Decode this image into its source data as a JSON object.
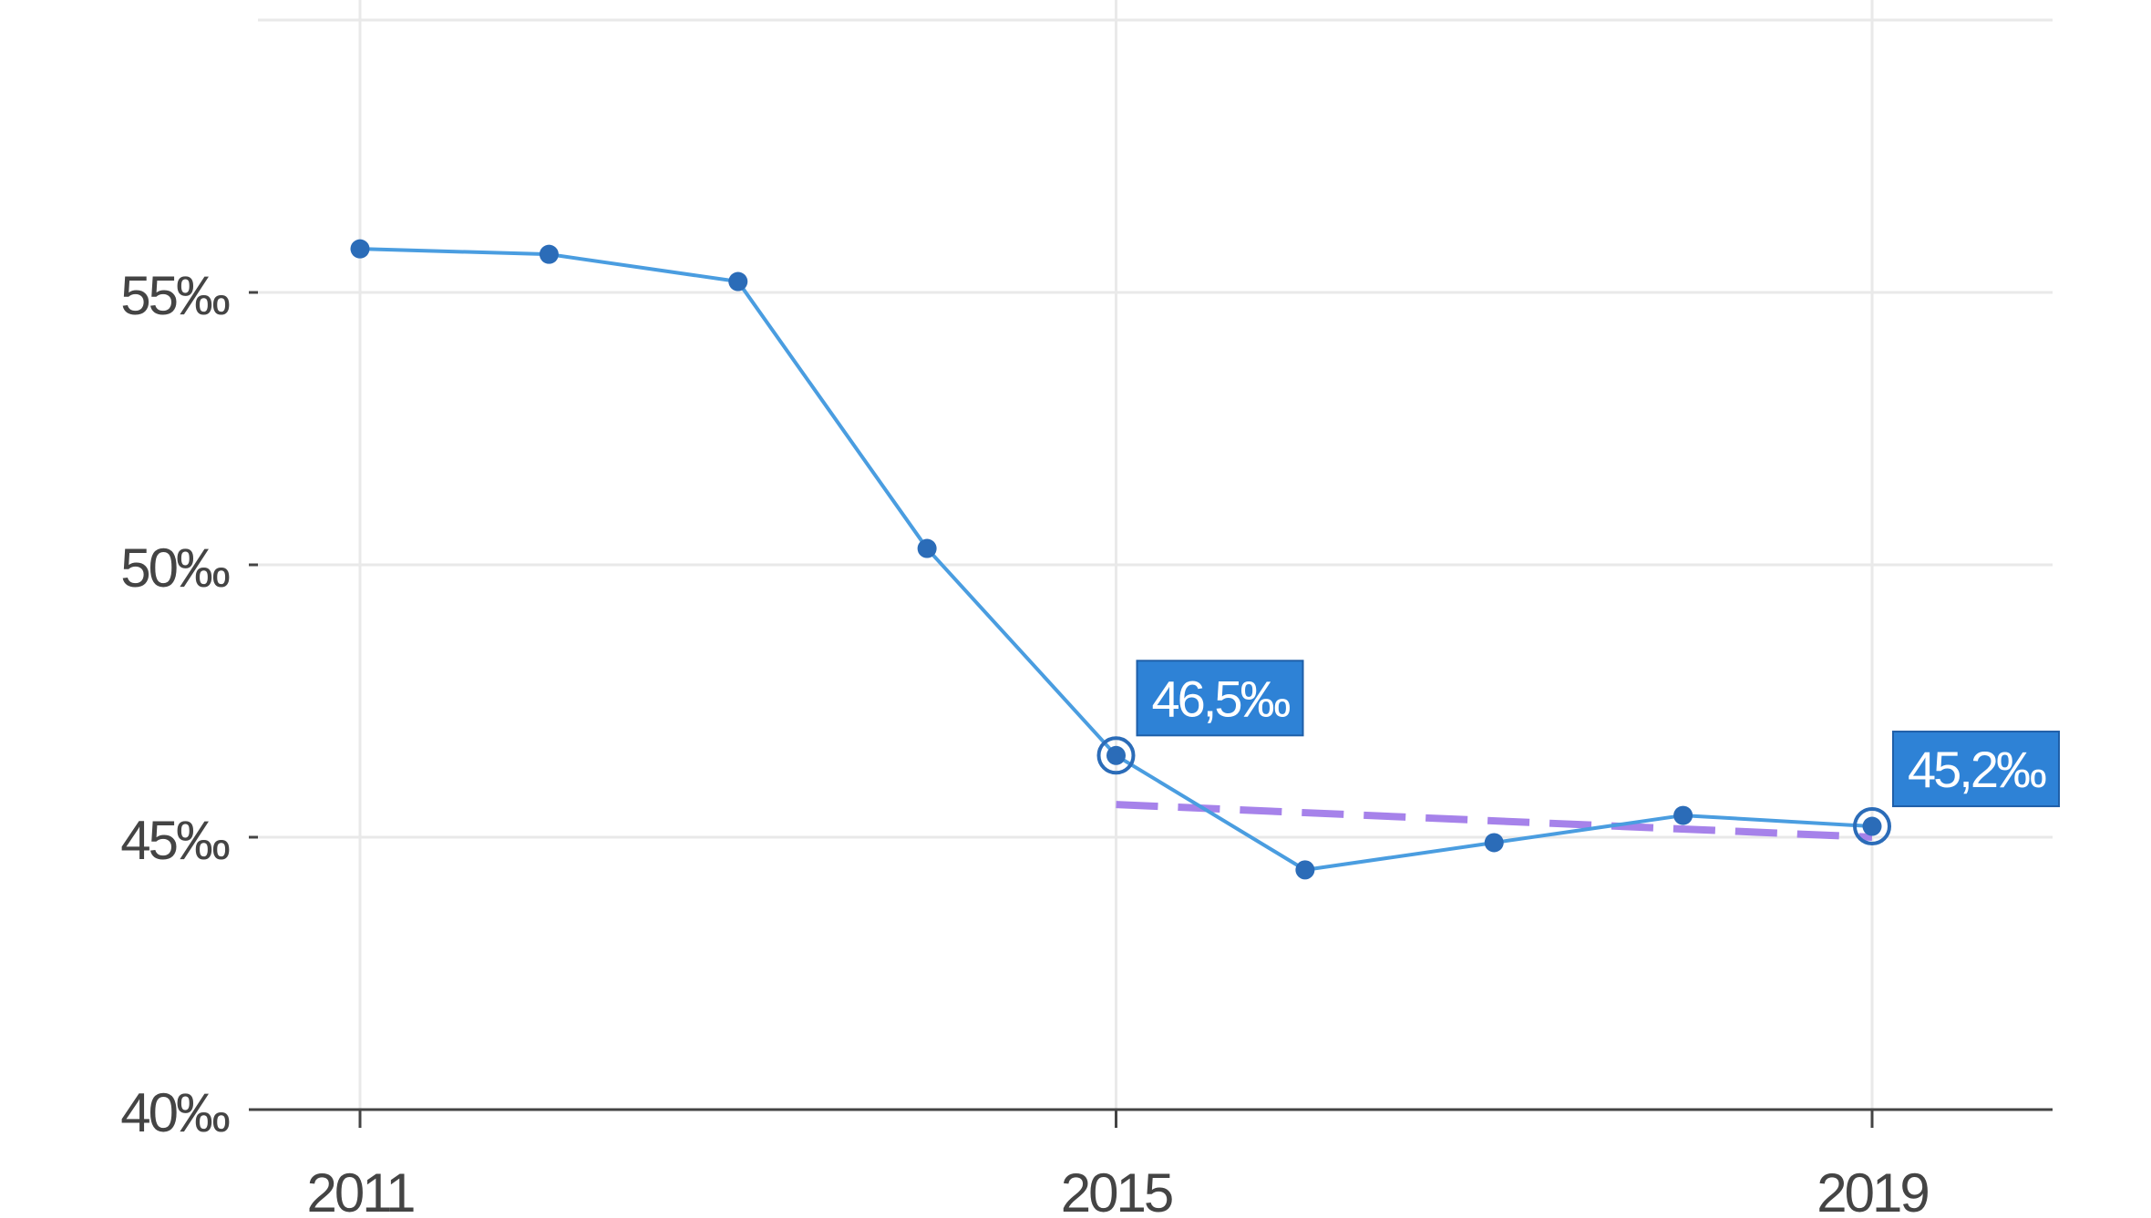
{
  "chart_data": {
    "type": "line",
    "title": "",
    "xlabel": "",
    "ylabel": "",
    "x": [
      2011,
      2012,
      2013,
      2014,
      2015,
      2016,
      2017,
      2018,
      2019
    ],
    "series": [
      {
        "values": [
          55.8,
          55.7,
          55.2,
          50.3,
          46.5,
          44.4,
          44.9,
          45.4,
          45.2
        ],
        "color": "#4a9de0",
        "marker_color": "#2b6cb8"
      }
    ],
    "trend": {
      "x": [
        2015,
        2019
      ],
      "values": [
        45.6,
        45.0
      ],
      "color": "#a682ea",
      "style": "dashed"
    },
    "callouts": [
      {
        "x": 2015,
        "value": 46.5,
        "label": "46,5‰"
      },
      {
        "x": 2019,
        "value": 45.2,
        "label": "45,2‰"
      }
    ],
    "yticks": [
      {
        "value": 40,
        "label": "40‰"
      },
      {
        "value": 45,
        "label": "45‰"
      },
      {
        "value": 50,
        "label": "50‰"
      },
      {
        "value": 55,
        "label": "55‰"
      }
    ],
    "xticks": [
      {
        "value": 2011,
        "label": "2011"
      },
      {
        "value": 2015,
        "label": "2015"
      },
      {
        "value": 2019,
        "label": "2019"
      }
    ],
    "ylim": [
      40,
      60
    ],
    "xlim": [
      2011,
      2019
    ],
    "grid": true,
    "legend": "none",
    "colors": {
      "grid": "#e9e9e9",
      "axis": "#444444",
      "callout_bg": "#2e82d6"
    }
  }
}
